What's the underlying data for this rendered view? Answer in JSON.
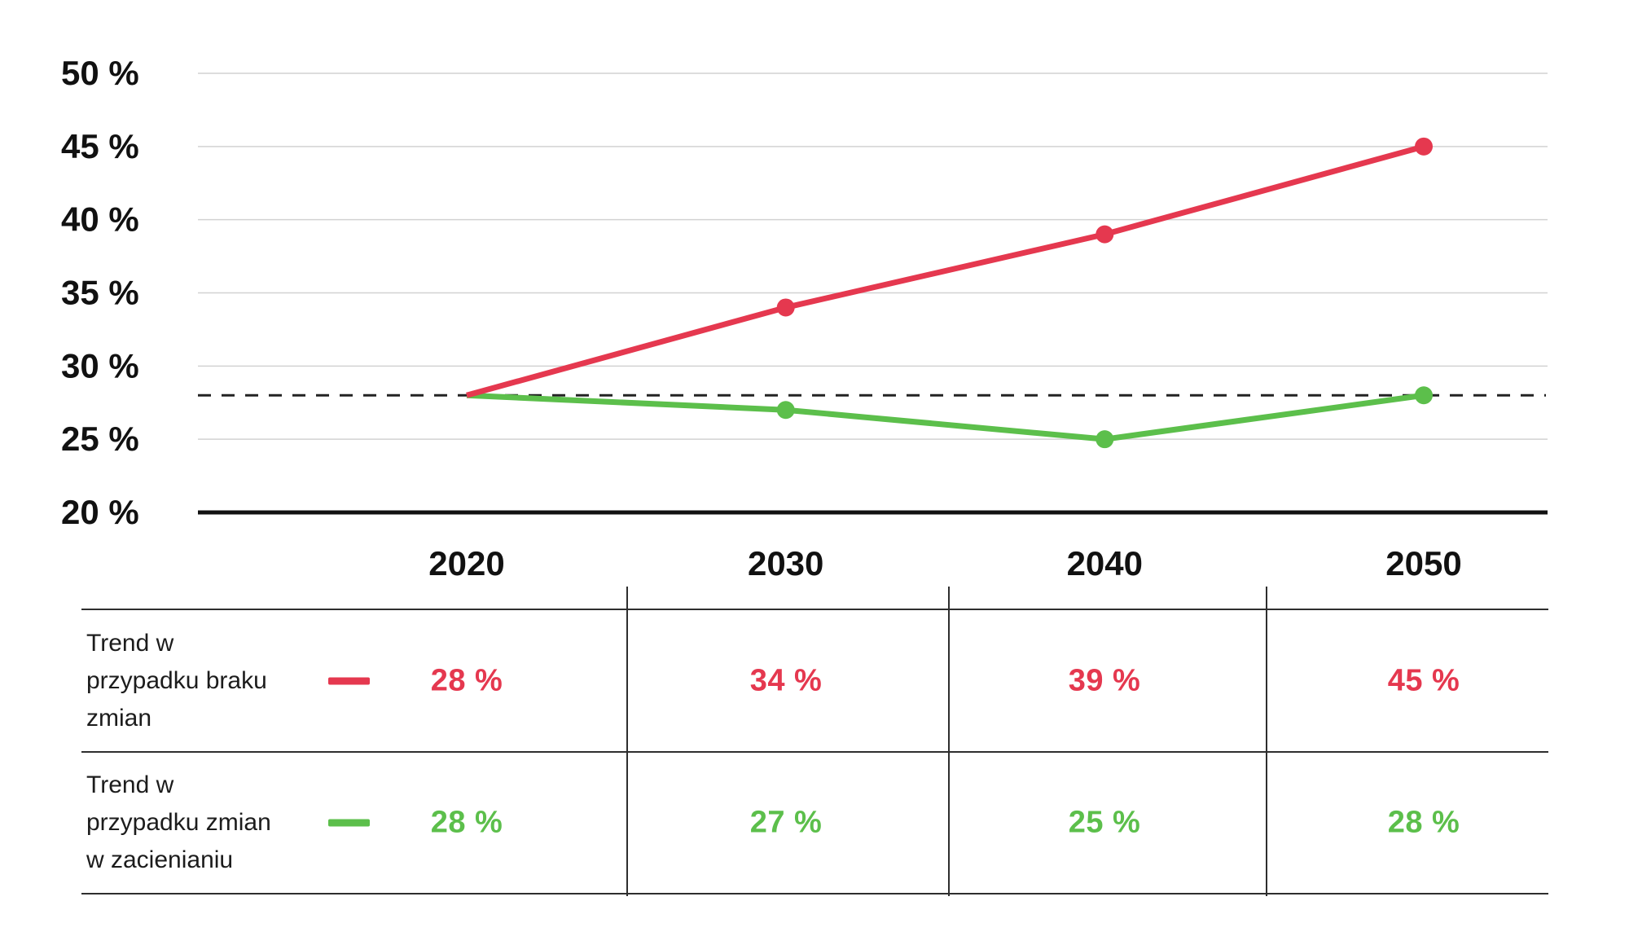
{
  "chart_data": {
    "type": "line",
    "x": [
      2020,
      2030,
      2040,
      2050
    ],
    "categories": [
      "2020",
      "2030",
      "2040",
      "2050"
    ],
    "series": [
      {
        "name": "Trend w przypadku braku zmian",
        "color": "#e5384f",
        "values": [
          28,
          34,
          39,
          45
        ]
      },
      {
        "name": "Trend w przypadku zmian w zacienianiu",
        "color": "#5cbf4b",
        "values": [
          28,
          27,
          25,
          28
        ]
      }
    ],
    "title": "",
    "xlabel": "",
    "ylabel": "",
    "ylim": [
      20,
      50
    ],
    "ytick_step": 5,
    "ytick_labels": [
      "50 %",
      "45 %",
      "40 %",
      "35 %",
      "30 %",
      "25 %",
      "20 %"
    ],
    "grid": true,
    "baseline_value": 20,
    "reference_line": {
      "value": 28,
      "style": "dashed",
      "color": "#222222"
    },
    "legend_position": "table-below",
    "unit": "%"
  },
  "table": {
    "rows": [
      {
        "label": "Trend w\nprzypadku braku\nzmian",
        "color": "#e5384f",
        "values": [
          "28 %",
          "34 %",
          "39 %",
          "45 %"
        ]
      },
      {
        "label": "Trend w\nprzypadku zmian\nw zacienianiu",
        "color": "#5cbf4b",
        "values": [
          "28 %",
          "27 %",
          "25 %",
          "28 %"
        ]
      }
    ]
  },
  "colors": {
    "series_red": "#e5384f",
    "series_green": "#5cbf4b",
    "gridline": "#d2d2d2",
    "axis": "#111111",
    "dashed_reference": "#222222",
    "text": "#1a1a1a"
  }
}
